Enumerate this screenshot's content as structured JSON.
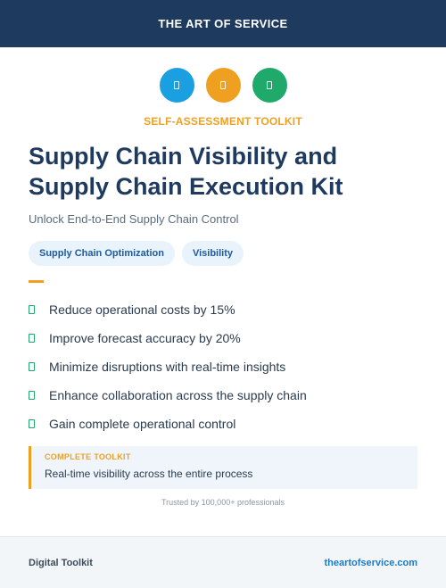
{
  "header": {
    "brand": "THE ART OF SERVICE",
    "background_color": "#1e3a5f"
  },
  "icons": [
    {
      "name": "document-icon",
      "color": "#1a9fe0"
    },
    {
      "name": "document-icon",
      "color": "#f0a020"
    },
    {
      "name": "document-icon",
      "color": "#1faa6b"
    }
  ],
  "kicker": "SELF-ASSESSMENT TOOLKIT",
  "title_line1": "Supply Chain Visibility and",
  "title_line2": "Supply Chain Execution Kit",
  "subtitle": "Unlock End-to-End Supply Chain Control",
  "tags": [
    "Supply Chain Optimization",
    "Visibility"
  ],
  "benefits": [
    "Reduce operational costs by 15%",
    "Improve forecast accuracy by 20%",
    "Minimize disruptions with real-time insights",
    "Enhance collaboration across the supply chain",
    "Gain complete operational control"
  ],
  "callout": {
    "label": "COMPLETE TOOLKIT",
    "text": "Real-time visibility across the entire process"
  },
  "trusted": "Trusted by 100,000+ professionals",
  "footer": {
    "left": "Digital Toolkit",
    "right": "theartofservice.com"
  },
  "colors": {
    "accent": "#f0a020",
    "navy": "#1e3a5f",
    "check": "#1faa6b",
    "link": "#1e7ac8"
  }
}
